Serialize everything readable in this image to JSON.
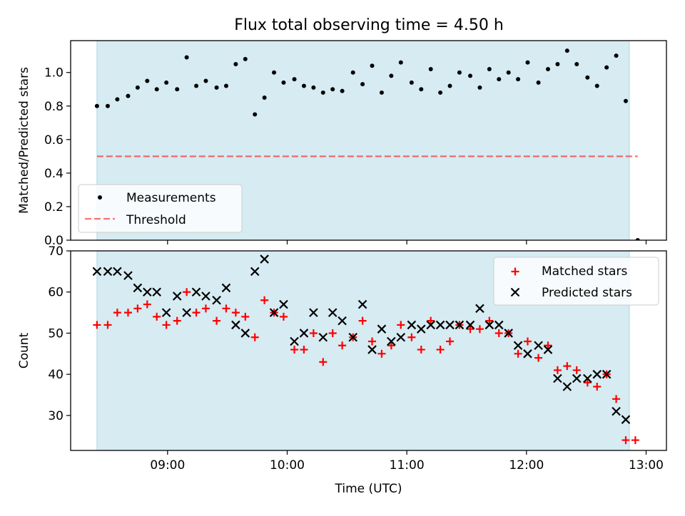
{
  "figure_title": "Flux total observing time = 4.50 h",
  "chart_data": [
    {
      "type": "scatter",
      "xaxis_label": "",
      "ylabel": "Matched/Predicted stars",
      "ylim": [
        0,
        1.19
      ],
      "xlim": [
        8.19,
        13.17
      ],
      "yticks": [
        0.0,
        0.2,
        0.4,
        0.6,
        0.8,
        1.0
      ],
      "ytick_labels": [
        "0.0",
        "0.2",
        "0.4",
        "0.6",
        "0.8",
        "1.0"
      ],
      "shaded_span": [
        8.41,
        12.86
      ],
      "threshold": {
        "value": 0.5,
        "x_range": [
          8.41,
          12.93
        ],
        "label": "Threshold"
      },
      "legend": [
        "Measurements",
        "Threshold"
      ],
      "legend_loc": "lower-left",
      "series": [
        {
          "name": "Measurements",
          "marker": "dot",
          "x": [
            8.41,
            8.5,
            8.58,
            8.67,
            8.75,
            8.83,
            8.91,
            8.99,
            9.08,
            9.16,
            9.24,
            9.32,
            9.41,
            9.49,
            9.57,
            9.65,
            9.73,
            9.81,
            9.89,
            9.97,
            10.06,
            10.14,
            10.22,
            10.3,
            10.38,
            10.46,
            10.55,
            10.63,
            10.71,
            10.79,
            10.87,
            10.95,
            11.04,
            11.12,
            11.2,
            11.28,
            11.36,
            11.44,
            11.53,
            11.61,
            11.69,
            11.77,
            11.85,
            11.93,
            12.01,
            12.1,
            12.18,
            12.26,
            12.34,
            12.42,
            12.51,
            12.59,
            12.67,
            12.75,
            12.83,
            12.93
          ],
          "y": [
            0.8,
            0.8,
            0.84,
            0.86,
            0.91,
            0.95,
            0.9,
            0.94,
            0.9,
            1.09,
            0.92,
            0.95,
            0.91,
            0.92,
            1.05,
            1.08,
            0.75,
            0.85,
            1.0,
            0.94,
            0.96,
            0.92,
            0.91,
            0.88,
            0.9,
            0.89,
            1.0,
            0.93,
            1.04,
            0.88,
            0.98,
            1.06,
            0.94,
            0.9,
            1.02,
            0.88,
            0.92,
            1.0,
            0.98,
            0.91,
            1.02,
            0.96,
            1.0,
            0.96,
            1.06,
            0.94,
            1.02,
            1.05,
            1.13,
            1.05,
            0.97,
            0.92,
            1.03,
            1.1,
            0.83,
            0.0
          ]
        }
      ]
    },
    {
      "type": "scatter",
      "xlabel": "Time (UTC)",
      "ylabel": "Count",
      "ylim": [
        21.5,
        70
      ],
      "xlim": [
        8.19,
        13.17
      ],
      "yticks": [
        30,
        40,
        50,
        60,
        70
      ],
      "ytick_labels": [
        "30",
        "40",
        "50",
        "60",
        "70"
      ],
      "xticks": [
        9,
        10,
        11,
        12,
        13
      ],
      "xtick_labels": [
        "09:00",
        "10:00",
        "11:00",
        "12:00",
        "13:00"
      ],
      "shaded_span": [
        8.41,
        12.86
      ],
      "legend": [
        "Matched stars",
        "Predicted stars"
      ],
      "legend_loc": "upper-right",
      "series": [
        {
          "name": "Matched stars",
          "marker": "plus",
          "color": "#ff0000",
          "x": [
            8.41,
            8.5,
            8.58,
            8.67,
            8.75,
            8.83,
            8.91,
            8.99,
            9.08,
            9.16,
            9.24,
            9.32,
            9.41,
            9.49,
            9.57,
            9.65,
            9.73,
            9.81,
            9.89,
            9.97,
            10.06,
            10.14,
            10.22,
            10.3,
            10.38,
            10.46,
            10.55,
            10.63,
            10.71,
            10.79,
            10.87,
            10.95,
            11.04,
            11.12,
            11.2,
            11.28,
            11.36,
            11.44,
            11.53,
            11.61,
            11.69,
            11.77,
            11.85,
            11.93,
            12.01,
            12.1,
            12.18,
            12.26,
            12.34,
            12.42,
            12.51,
            12.59,
            12.67,
            12.75,
            12.83,
            12.91
          ],
          "y": [
            52,
            52,
            55,
            55,
            56,
            57,
            54,
            52,
            53,
            60,
            55,
            56,
            53,
            56,
            55,
            54,
            49,
            58,
            55,
            54,
            46,
            46,
            50,
            43,
            50,
            47,
            49,
            53,
            48,
            45,
            47,
            52,
            49,
            46,
            53,
            46,
            48,
            52,
            51,
            51,
            53,
            50,
            50,
            45,
            48,
            44,
            47,
            41,
            42,
            41,
            38,
            37,
            40,
            34,
            24,
            24
          ]
        },
        {
          "name": "Predicted stars",
          "marker": "x",
          "color": "#000000",
          "x": [
            8.41,
            8.5,
            8.58,
            8.67,
            8.75,
            8.83,
            8.91,
            8.99,
            9.08,
            9.16,
            9.24,
            9.32,
            9.41,
            9.49,
            9.57,
            9.65,
            9.73,
            9.81,
            9.89,
            9.97,
            10.06,
            10.14,
            10.22,
            10.3,
            10.38,
            10.46,
            10.55,
            10.63,
            10.71,
            10.79,
            10.87,
            10.95,
            11.04,
            11.12,
            11.2,
            11.28,
            11.36,
            11.44,
            11.53,
            11.61,
            11.69,
            11.77,
            11.85,
            11.93,
            12.01,
            12.1,
            12.18,
            12.26,
            12.34,
            12.42,
            12.51,
            12.59,
            12.67,
            12.75,
            12.83
          ],
          "y": [
            65,
            65,
            65,
            64,
            61,
            60,
            60,
            55,
            59,
            55,
            60,
            59,
            58,
            61,
            52,
            50,
            65,
            68,
            55,
            57,
            48,
            50,
            55,
            49,
            55,
            53,
            49,
            57,
            46,
            51,
            48,
            49,
            52,
            51,
            52,
            52,
            52,
            52,
            52,
            56,
            52,
            52,
            50,
            47,
            45,
            47,
            46,
            39,
            37,
            39,
            39,
            40,
            40,
            31,
            29
          ]
        }
      ]
    }
  ]
}
